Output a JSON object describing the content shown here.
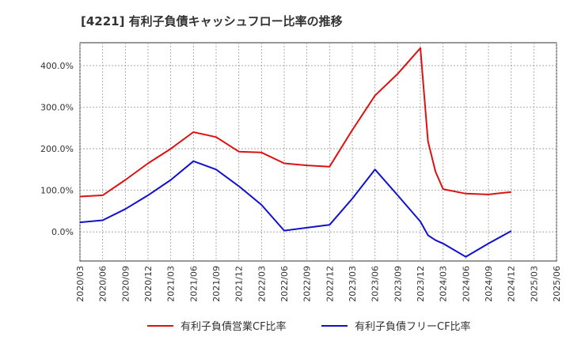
{
  "chart_data": {
    "type": "line",
    "title": "[4221]  有利子負債キャッシュフロー比率の推移",
    "xlabel": "",
    "ylabel": "",
    "x_ticks": [
      "2020/03",
      "2020/06",
      "2020/09",
      "2020/12",
      "2021/03",
      "2021/06",
      "2021/09",
      "2021/12",
      "2022/03",
      "2022/06",
      "2022/09",
      "2022/12",
      "2023/03",
      "2023/06",
      "2023/09",
      "2023/12",
      "2024/03",
      "2024/06",
      "2024/09",
      "2024/12",
      "2025/03",
      "2025/06"
    ],
    "y_ticks": [
      0,
      100,
      200,
      300,
      400
    ],
    "y_tick_labels": [
      "0.0%",
      "100.0%",
      "200.0%",
      "300.0%",
      "400.0%"
    ],
    "ylim": [
      -70,
      455
    ],
    "grid": true,
    "legend_position": "bottom",
    "series": [
      {
        "name": "有利子負債営業CF比率",
        "color": "#dd1111",
        "points": [
          [
            "2020/03",
            85
          ],
          [
            "2020/06",
            88
          ],
          [
            "2020/09",
            125
          ],
          [
            "2020/12",
            165
          ],
          [
            "2021/03",
            200
          ],
          [
            "2021/06",
            240
          ],
          [
            "2021/09",
            228
          ],
          [
            "2021/12",
            193
          ],
          [
            "2022/03",
            191
          ],
          [
            "2022/06",
            165
          ],
          [
            "2022/09",
            160
          ],
          [
            "2022/12",
            157
          ],
          [
            "2023/03",
            245
          ],
          [
            "2023/06",
            328
          ],
          [
            "2023/09",
            380
          ],
          [
            "2023/12",
            442
          ],
          [
            "2024/01",
            218
          ],
          [
            "2024/02",
            145
          ],
          [
            "2024/03",
            103
          ],
          [
            "2024/06",
            92
          ],
          [
            "2024/09",
            90
          ],
          [
            "2024/12",
            96
          ]
        ]
      },
      {
        "name": "有利子負債フリーCF比率",
        "color": "#1111cc",
        "points": [
          [
            "2020/03",
            23
          ],
          [
            "2020/06",
            28
          ],
          [
            "2020/09",
            55
          ],
          [
            "2020/12",
            88
          ],
          [
            "2021/03",
            125
          ],
          [
            "2021/06",
            170
          ],
          [
            "2021/09",
            150
          ],
          [
            "2021/12",
            110
          ],
          [
            "2022/03",
            65
          ],
          [
            "2022/06",
            3
          ],
          [
            "2022/09",
            10
          ],
          [
            "2022/12",
            17
          ],
          [
            "2023/03",
            80
          ],
          [
            "2023/06",
            150
          ],
          [
            "2023/09",
            88
          ],
          [
            "2023/12",
            25
          ],
          [
            "2024/01",
            -8
          ],
          [
            "2024/02",
            -20
          ],
          [
            "2024/03",
            -28
          ],
          [
            "2024/06",
            -60
          ],
          [
            "2024/09",
            -28
          ],
          [
            "2024/12",
            2
          ]
        ]
      }
    ]
  }
}
